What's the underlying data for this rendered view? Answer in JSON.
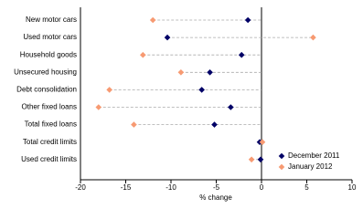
{
  "chart_data": {
    "type": "dot",
    "categories": [
      "New motor cars",
      "Used motor cars",
      "Household goods",
      "Unsecured housing",
      "Debt consolidation",
      "Other fixed loans",
      "Total fixed loans",
      "Total credit limits",
      "Used credit limits"
    ],
    "series": [
      {
        "name": "December 2011",
        "color": "#000066",
        "values": [
          -1.5,
          -10.4,
          -2.2,
          -5.7,
          -6.6,
          -3.4,
          -5.2,
          -0.2,
          -0.1
        ]
      },
      {
        "name": "January 2012",
        "color": "#f79a72",
        "values": [
          -12.0,
          5.7,
          -13.1,
          -8.9,
          -16.8,
          -18.0,
          -14.1,
          0.1,
          -1.1
        ]
      }
    ],
    "x_label": "% change",
    "xlim": [
      -20,
      10
    ],
    "xticks": [
      -20,
      -15,
      -10,
      -5,
      0,
      5,
      10
    ]
  }
}
